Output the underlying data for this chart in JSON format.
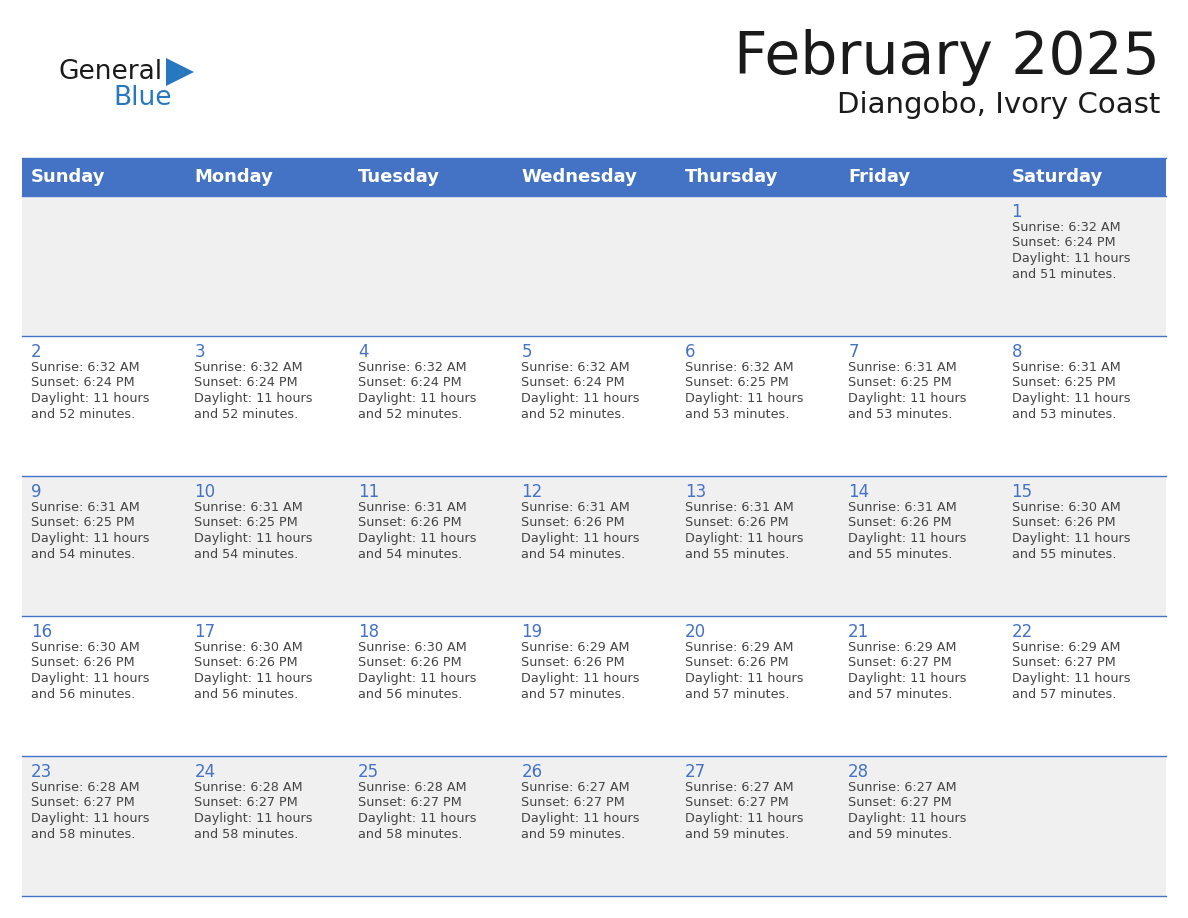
{
  "title": "February 2025",
  "subtitle": "Diangobo, Ivory Coast",
  "days_of_week": [
    "Sunday",
    "Monday",
    "Tuesday",
    "Wednesday",
    "Thursday",
    "Friday",
    "Saturday"
  ],
  "header_bg": "#4472C4",
  "header_text": "#FFFFFF",
  "row_bg_odd": "#F0F0F0",
  "row_bg_even": "#FFFFFF",
  "border_color": "#4472C4",
  "text_color": "#444444",
  "day_num_color": "#4472C4",
  "title_color": "#1a1a1a",
  "logo_general_color": "#1a1a1a",
  "logo_blue_color": "#2878C0",
  "calendar_data": [
    [
      {
        "day": "",
        "sunrise": "",
        "sunset": "",
        "dl1": "",
        "dl2": ""
      },
      {
        "day": "",
        "sunrise": "",
        "sunset": "",
        "dl1": "",
        "dl2": ""
      },
      {
        "day": "",
        "sunrise": "",
        "sunset": "",
        "dl1": "",
        "dl2": ""
      },
      {
        "day": "",
        "sunrise": "",
        "sunset": "",
        "dl1": "",
        "dl2": ""
      },
      {
        "day": "",
        "sunrise": "",
        "sunset": "",
        "dl1": "",
        "dl2": ""
      },
      {
        "day": "",
        "sunrise": "",
        "sunset": "",
        "dl1": "",
        "dl2": ""
      },
      {
        "day": "1",
        "sunrise": "6:32 AM",
        "sunset": "6:24 PM",
        "dl1": "Daylight: 11 hours",
        "dl2": "and 51 minutes."
      }
    ],
    [
      {
        "day": "2",
        "sunrise": "6:32 AM",
        "sunset": "6:24 PM",
        "dl1": "Daylight: 11 hours",
        "dl2": "and 52 minutes."
      },
      {
        "day": "3",
        "sunrise": "6:32 AM",
        "sunset": "6:24 PM",
        "dl1": "Daylight: 11 hours",
        "dl2": "and 52 minutes."
      },
      {
        "day": "4",
        "sunrise": "6:32 AM",
        "sunset": "6:24 PM",
        "dl1": "Daylight: 11 hours",
        "dl2": "and 52 minutes."
      },
      {
        "day": "5",
        "sunrise": "6:32 AM",
        "sunset": "6:24 PM",
        "dl1": "Daylight: 11 hours",
        "dl2": "and 52 minutes."
      },
      {
        "day": "6",
        "sunrise": "6:32 AM",
        "sunset": "6:25 PM",
        "dl1": "Daylight: 11 hours",
        "dl2": "and 53 minutes."
      },
      {
        "day": "7",
        "sunrise": "6:31 AM",
        "sunset": "6:25 PM",
        "dl1": "Daylight: 11 hours",
        "dl2": "and 53 minutes."
      },
      {
        "day": "8",
        "sunrise": "6:31 AM",
        "sunset": "6:25 PM",
        "dl1": "Daylight: 11 hours",
        "dl2": "and 53 minutes."
      }
    ],
    [
      {
        "day": "9",
        "sunrise": "6:31 AM",
        "sunset": "6:25 PM",
        "dl1": "Daylight: 11 hours",
        "dl2": "and 54 minutes."
      },
      {
        "day": "10",
        "sunrise": "6:31 AM",
        "sunset": "6:25 PM",
        "dl1": "Daylight: 11 hours",
        "dl2": "and 54 minutes."
      },
      {
        "day": "11",
        "sunrise": "6:31 AM",
        "sunset": "6:26 PM",
        "dl1": "Daylight: 11 hours",
        "dl2": "and 54 minutes."
      },
      {
        "day": "12",
        "sunrise": "6:31 AM",
        "sunset": "6:26 PM",
        "dl1": "Daylight: 11 hours",
        "dl2": "and 54 minutes."
      },
      {
        "day": "13",
        "sunrise": "6:31 AM",
        "sunset": "6:26 PM",
        "dl1": "Daylight: 11 hours",
        "dl2": "and 55 minutes."
      },
      {
        "day": "14",
        "sunrise": "6:31 AM",
        "sunset": "6:26 PM",
        "dl1": "Daylight: 11 hours",
        "dl2": "and 55 minutes."
      },
      {
        "day": "15",
        "sunrise": "6:30 AM",
        "sunset": "6:26 PM",
        "dl1": "Daylight: 11 hours",
        "dl2": "and 55 minutes."
      }
    ],
    [
      {
        "day": "16",
        "sunrise": "6:30 AM",
        "sunset": "6:26 PM",
        "dl1": "Daylight: 11 hours",
        "dl2": "and 56 minutes."
      },
      {
        "day": "17",
        "sunrise": "6:30 AM",
        "sunset": "6:26 PM",
        "dl1": "Daylight: 11 hours",
        "dl2": "and 56 minutes."
      },
      {
        "day": "18",
        "sunrise": "6:30 AM",
        "sunset": "6:26 PM",
        "dl1": "Daylight: 11 hours",
        "dl2": "and 56 minutes."
      },
      {
        "day": "19",
        "sunrise": "6:29 AM",
        "sunset": "6:26 PM",
        "dl1": "Daylight: 11 hours",
        "dl2": "and 57 minutes."
      },
      {
        "day": "20",
        "sunrise": "6:29 AM",
        "sunset": "6:26 PM",
        "dl1": "Daylight: 11 hours",
        "dl2": "and 57 minutes."
      },
      {
        "day": "21",
        "sunrise": "6:29 AM",
        "sunset": "6:27 PM",
        "dl1": "Daylight: 11 hours",
        "dl2": "and 57 minutes."
      },
      {
        "day": "22",
        "sunrise": "6:29 AM",
        "sunset": "6:27 PM",
        "dl1": "Daylight: 11 hours",
        "dl2": "and 57 minutes."
      }
    ],
    [
      {
        "day": "23",
        "sunrise": "6:28 AM",
        "sunset": "6:27 PM",
        "dl1": "Daylight: 11 hours",
        "dl2": "and 58 minutes."
      },
      {
        "day": "24",
        "sunrise": "6:28 AM",
        "sunset": "6:27 PM",
        "dl1": "Daylight: 11 hours",
        "dl2": "and 58 minutes."
      },
      {
        "day": "25",
        "sunrise": "6:28 AM",
        "sunset": "6:27 PM",
        "dl1": "Daylight: 11 hours",
        "dl2": "and 58 minutes."
      },
      {
        "day": "26",
        "sunrise": "6:27 AM",
        "sunset": "6:27 PM",
        "dl1": "Daylight: 11 hours",
        "dl2": "and 59 minutes."
      },
      {
        "day": "27",
        "sunrise": "6:27 AM",
        "sunset": "6:27 PM",
        "dl1": "Daylight: 11 hours",
        "dl2": "and 59 minutes."
      },
      {
        "day": "28",
        "sunrise": "6:27 AM",
        "sunset": "6:27 PM",
        "dl1": "Daylight: 11 hours",
        "dl2": "and 59 minutes."
      },
      {
        "day": "",
        "sunrise": "",
        "sunset": "",
        "dl1": "",
        "dl2": ""
      }
    ]
  ]
}
